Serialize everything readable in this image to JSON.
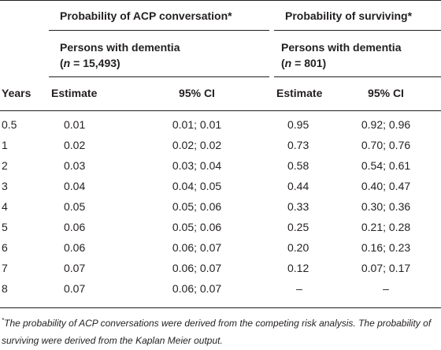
{
  "table": {
    "group_headers": [
      {
        "label": "Probability of ACP conversation*",
        "sub_label": "Persons with dementia",
        "n": "(n = 15,493)"
      },
      {
        "label": "Probability of surviving*",
        "sub_label": "Persons with dementia",
        "n": "(n = 801)"
      }
    ],
    "column_headers": [
      "Years",
      "Estimate",
      "95% CI",
      "Estimate",
      "95% CI"
    ],
    "rows": [
      [
        "0.5",
        "0.01",
        "0.01; 0.01",
        "0.95",
        "0.92; 0.96"
      ],
      [
        "1",
        "0.02",
        "0.02; 0.02",
        "0.73",
        "0.70; 0.76"
      ],
      [
        "2",
        "0.03",
        "0.03; 0.04",
        "0.58",
        "0.54; 0.61"
      ],
      [
        "3",
        "0.04",
        "0.04; 0.05",
        "0.44",
        "0.40; 0.47"
      ],
      [
        "4",
        "0.05",
        "0.05; 0.06",
        "0.33",
        "0.30; 0.36"
      ],
      [
        "5",
        "0.06",
        "0.05; 0.06",
        "0.25",
        "0.21; 0.28"
      ],
      [
        "6",
        "0.06",
        "0.06; 0.07",
        "0.20",
        "0.16; 0.23"
      ],
      [
        "7",
        "0.07",
        "0.06; 0.07",
        "0.12",
        "0.07; 0.17"
      ],
      [
        "8",
        "0.07",
        "0.06; 0.07",
        "–",
        "–"
      ]
    ]
  },
  "footnote": {
    "marker": "*",
    "text": "The probability of ACP conversations were derived from the competing risk analysis. The probability of surviving were derived from the Kaplan Meier output."
  }
}
